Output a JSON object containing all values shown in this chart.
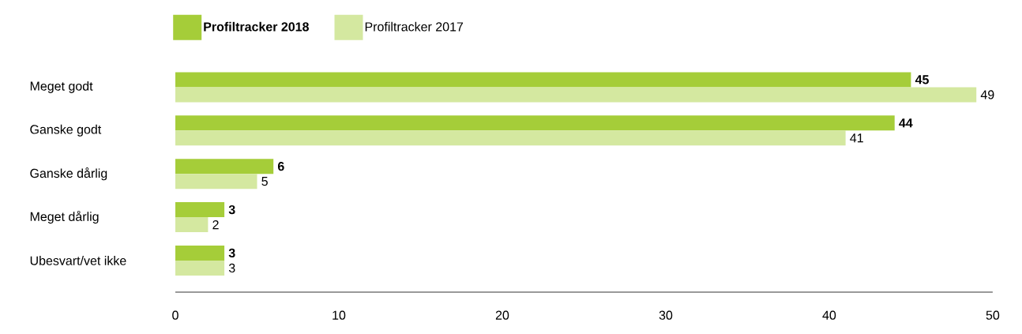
{
  "chart_data": {
    "type": "bar",
    "orientation": "horizontal",
    "categories": [
      "Meget godt",
      "Ganske godt",
      "Ganske dårlig",
      "Meget dårlig",
      "Ubesvart/vet ikke"
    ],
    "series": [
      {
        "name": "Profiltracker 2018",
        "color": "#a5cd39",
        "values": [
          45,
          44,
          6,
          3,
          3
        ]
      },
      {
        "name": "Profiltracker 2017",
        "color": "#d4e8a0",
        "values": [
          49,
          41,
          5,
          2,
          3
        ]
      }
    ],
    "xlim": [
      0,
      50
    ],
    "xticks": [
      0,
      10,
      20,
      30,
      40,
      50
    ],
    "data_labels": true,
    "legend": "top left"
  }
}
